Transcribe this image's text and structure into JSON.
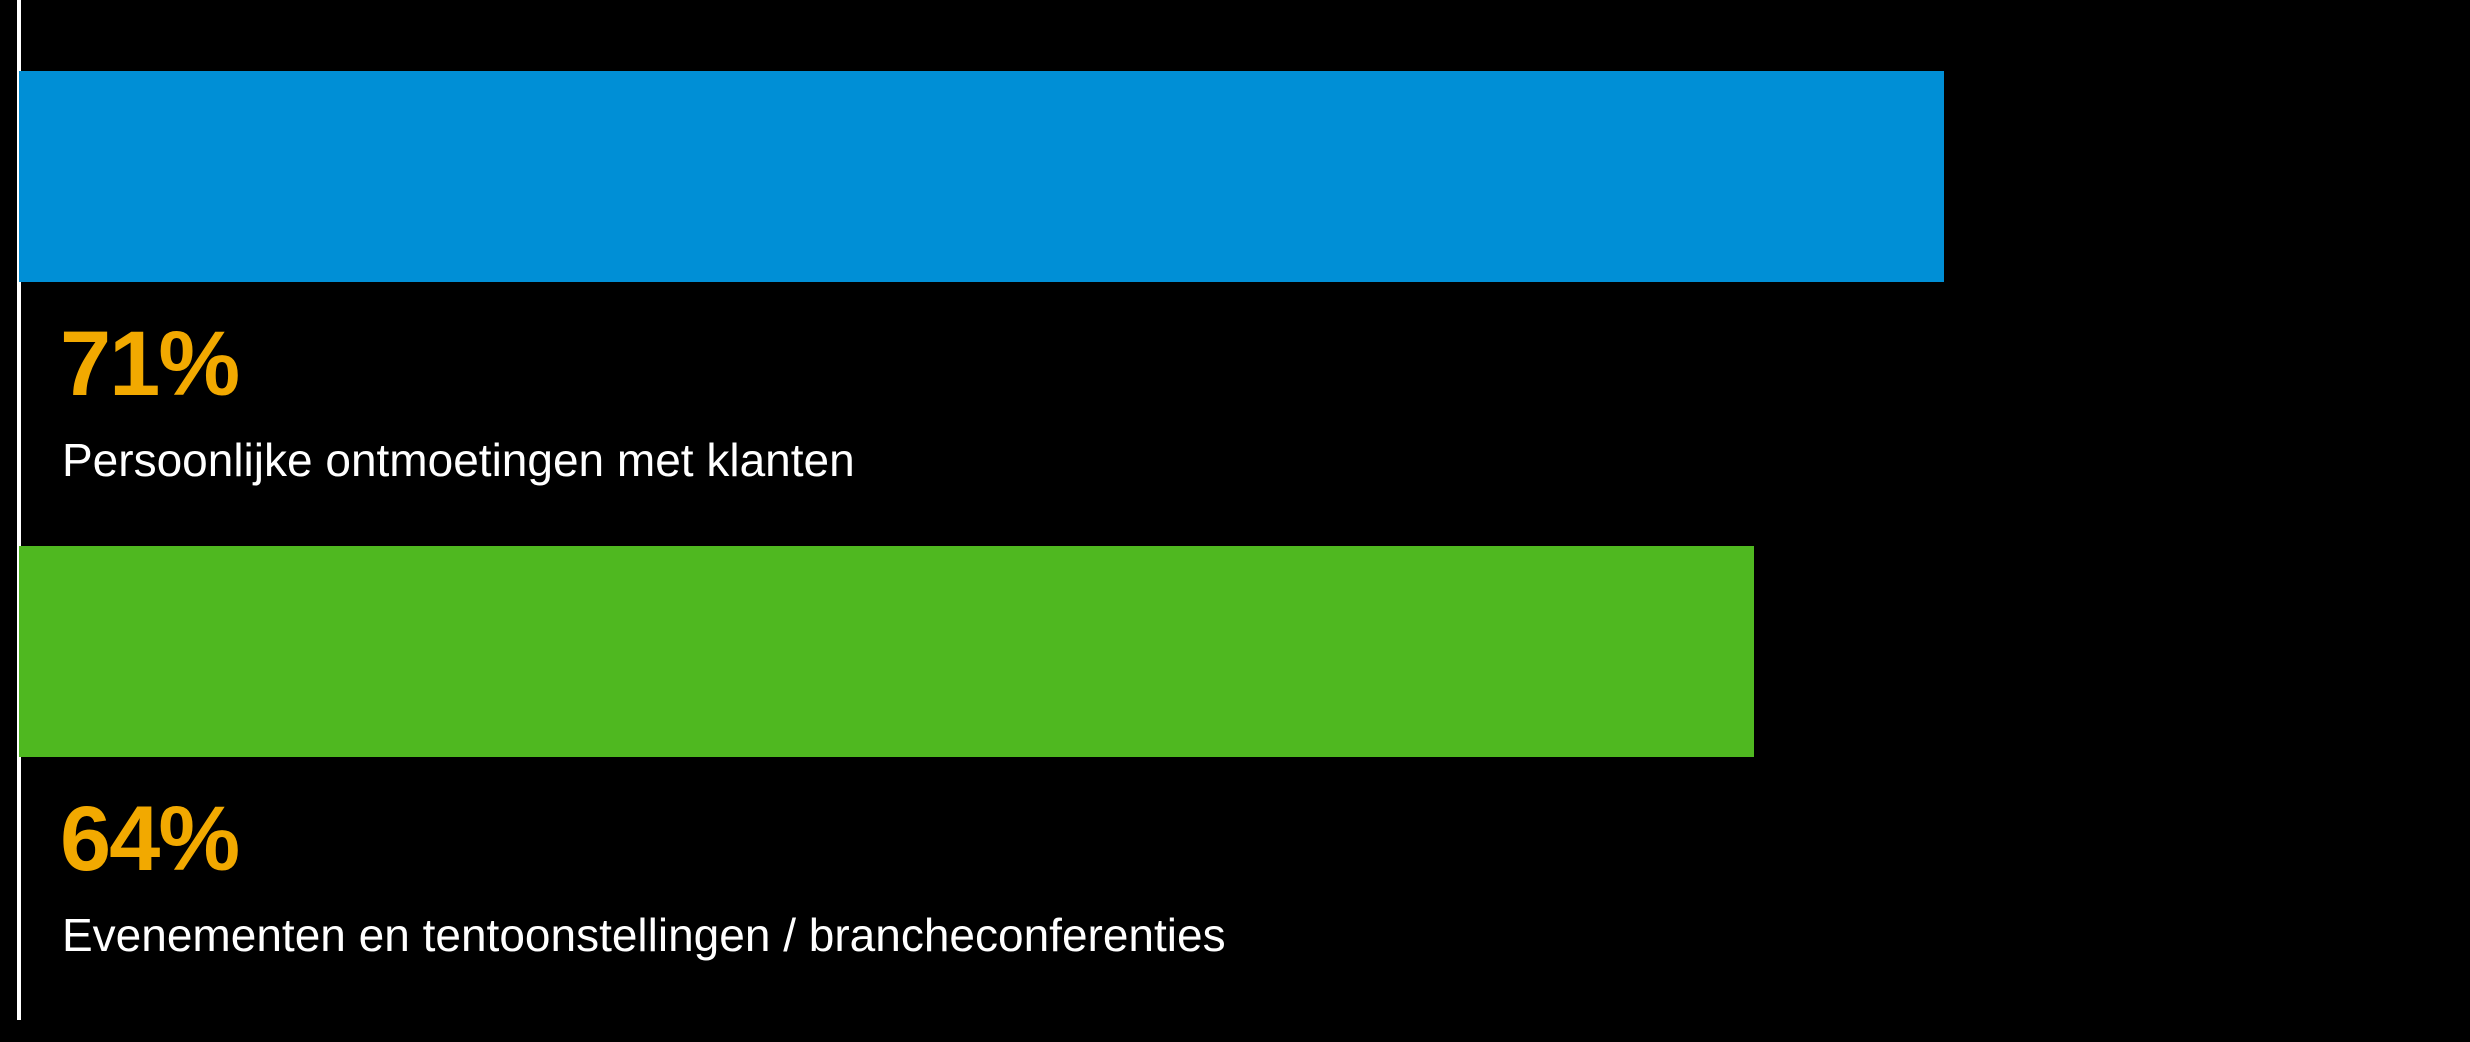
{
  "chart_data": {
    "type": "bar",
    "orientation": "horizontal",
    "categories": [
      "Persoonlijke ontmoetingen met klanten",
      "Evenementen en tentoonstellingen / brancheconferenties"
    ],
    "values": [
      71,
      64
    ],
    "value_labels": [
      "71%",
      "64%"
    ],
    "unit": "%",
    "bar_colors": [
      "#008fd6",
      "#4fb820"
    ],
    "value_label_color": "#f2a900",
    "label_color": "#ffffff",
    "background": "#000000",
    "grid": false,
    "legend": "none"
  }
}
